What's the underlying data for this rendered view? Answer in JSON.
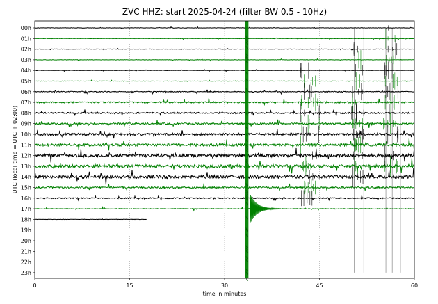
{
  "chart_data": {
    "type": "line",
    "title": "ZVC HHZ: start 2025-04-24 (filter BW 0.5 - 10Hz)",
    "xlabel": "time in minutes",
    "ylabel": "UTC (local time = UTC + 02:00)",
    "xlim": [
      0,
      60
    ],
    "x_ticks": [
      0,
      15,
      30,
      45,
      60
    ],
    "x_tick_labels": [
      "0",
      "15",
      "30",
      "45",
      "60"
    ],
    "grid": "vertical dotted lines at 15, 30, 45",
    "hours": [
      "00h",
      "01h",
      "02h",
      "03h",
      "04h",
      "05h",
      "06h",
      "07h",
      "08h",
      "09h",
      "10h",
      "11h",
      "12h",
      "13h",
      "14h",
      "15h",
      "16h",
      "17h",
      "18h",
      "19h",
      "20h",
      "21h",
      "22h",
      "23h"
    ],
    "trace_colors": [
      "#000000",
      "#008000"
    ],
    "trace_end_minute": {
      "18h": 17.7
    },
    "noise_amplitude": [
      0.12,
      0.12,
      0.12,
      0.12,
      0.12,
      0.12,
      0.25,
      0.45,
      0.45,
      0.5,
      0.7,
      0.8,
      1.0,
      1.0,
      1.0,
      0.5,
      0.35,
      0.2,
      0.12,
      0,
      0,
      0,
      0,
      0
    ],
    "events": [
      {
        "label": "large earthquake",
        "minute": 33.5,
        "start_hour_index": 0,
        "end_hour_index": 23,
        "color": "#008000"
      },
      {
        "label": "earthquake coda",
        "minute": 34.0,
        "hour_index": 17,
        "color": "#008000"
      },
      {
        "label": "activity cluster",
        "minute_range": [
          42,
          45
        ],
        "hour_range": [
          4,
          16
        ]
      },
      {
        "label": "activity cluster",
        "minute_range": [
          50,
          52
        ],
        "hour_range": [
          2,
          14
        ]
      },
      {
        "label": "activity cluster",
        "minute_range": [
          55,
          57.5
        ],
        "hour_range": [
          0,
          13
        ]
      },
      {
        "label": "spike lines",
        "minutes": [
          50.5,
          52.0,
          55.5,
          56.5,
          57.8
        ],
        "hour_range": [
          0,
          23
        ]
      }
    ]
  }
}
